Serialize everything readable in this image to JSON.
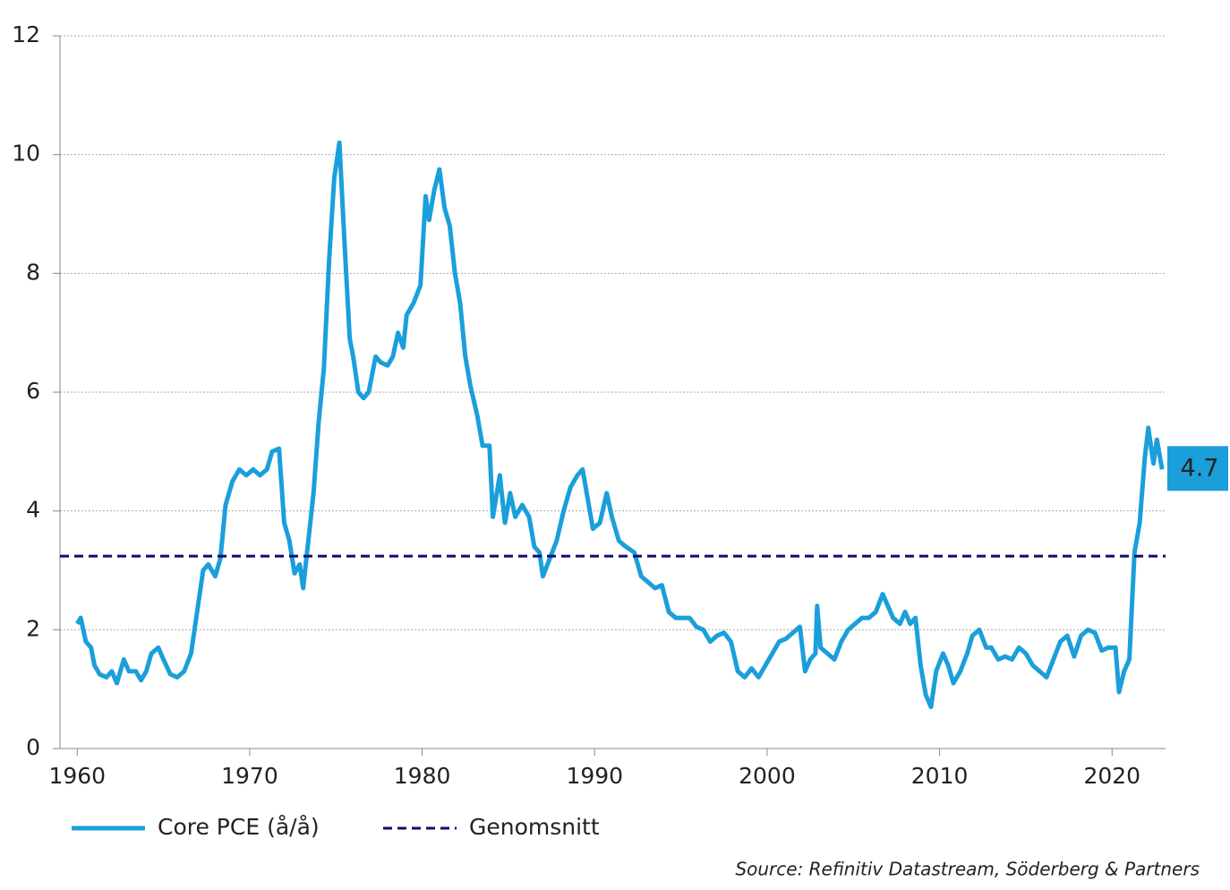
{
  "chart_data": {
    "type": "line",
    "xlim": [
      1959,
      2023.1
    ],
    "xticks": [
      1960,
      1970,
      1980,
      1990,
      2000,
      2010,
      2020
    ],
    "ylim": [
      0,
      12
    ],
    "yticks": [
      0,
      2,
      4,
      6,
      8,
      10,
      12
    ],
    "grid": true,
    "legend": "bottom",
    "source": "Source: Refinitiv Datastream, Söderberg & Partners",
    "series": [
      {
        "name": "Core PCE (å/å)",
        "color": "#1a9fdb",
        "style": "solid",
        "end_label": "4.7",
        "x": [
          1960.0,
          1960.2,
          1960.5,
          1960.8,
          1961.0,
          1961.3,
          1961.7,
          1962.0,
          1962.3,
          1962.7,
          1963.0,
          1963.4,
          1963.7,
          1964.0,
          1964.3,
          1964.7,
          1965.0,
          1965.4,
          1965.8,
          1966.2,
          1966.6,
          1967.0,
          1967.3,
          1967.6,
          1968.0,
          1968.3,
          1968.6,
          1969.0,
          1969.4,
          1969.8,
          1970.2,
          1970.6,
          1971.0,
          1971.3,
          1971.7,
          1972.0,
          1972.3,
          1972.6,
          1972.9,
          1973.1,
          1973.4,
          1973.7,
          1974.0,
          1974.3,
          1974.6,
          1974.9,
          1975.2,
          1975.5,
          1975.8,
          1976.0,
          1976.3,
          1976.6,
          1976.9,
          1977.3,
          1977.6,
          1978.0,
          1978.3,
          1978.6,
          1978.9,
          1979.1,
          1979.5,
          1979.9,
          1980.2,
          1980.4,
          1980.7,
          1981.0,
          1981.3,
          1981.6,
          1981.9,
          1982.2,
          1982.5,
          1982.8,
          1983.2,
          1983.5,
          1983.9,
          1984.1,
          1984.5,
          1984.8,
          1985.1,
          1985.4,
          1985.8,
          1986.2,
          1986.5,
          1986.8,
          1987.0,
          1987.4,
          1987.8,
          1988.2,
          1988.6,
          1989.0,
          1989.3,
          1989.6,
          1989.9,
          1990.3,
          1990.7,
          1991.0,
          1991.4,
          1991.8,
          1992.3,
          1992.7,
          1993.1,
          1993.5,
          1993.9,
          1994.3,
          1994.7,
          1995.1,
          1995.5,
          1995.9,
          1996.3,
          1996.7,
          1997.1,
          1997.5,
          1997.9,
          1998.3,
          1998.7,
          1999.1,
          1999.5,
          1999.9,
          2000.3,
          2000.7,
          2001.1,
          2001.5,
          2001.9,
          2002.2,
          2002.5,
          2002.8,
          2002.9,
          2003.1,
          2003.5,
          2003.9,
          2004.3,
          2004.7,
          2005.1,
          2005.5,
          2005.9,
          2006.3,
          2006.7,
          2007.0,
          2007.3,
          2007.7,
          2008.0,
          2008.3,
          2008.6,
          2008.9,
          2009.2,
          2009.5,
          2009.8,
          2010.2,
          2010.5,
          2010.8,
          2011.2,
          2011.6,
          2011.9,
          2012.3,
          2012.7,
          2013.0,
          2013.4,
          2013.8,
          2014.2,
          2014.6,
          2015.0,
          2015.4,
          2015.8,
          2016.2,
          2016.6,
          2017.0,
          2017.4,
          2017.8,
          2018.2,
          2018.6,
          2019.0,
          2019.4,
          2019.8,
          2020.2,
          2020.4,
          2020.7,
          2021.0,
          2021.3,
          2021.6,
          2021.9,
          2022.1,
          2022.4,
          2022.6,
          2022.9
        ],
        "values": [
          2.1,
          2.2,
          1.8,
          1.7,
          1.4,
          1.25,
          1.2,
          1.3,
          1.1,
          1.5,
          1.3,
          1.3,
          1.15,
          1.3,
          1.6,
          1.7,
          1.5,
          1.25,
          1.2,
          1.3,
          1.6,
          2.4,
          3.0,
          3.1,
          2.9,
          3.2,
          4.1,
          4.5,
          4.7,
          4.6,
          4.7,
          4.6,
          4.7,
          5.0,
          5.05,
          3.8,
          3.5,
          2.95,
          3.1,
          2.7,
          3.5,
          4.3,
          5.5,
          6.4,
          8.2,
          9.6,
          10.2,
          8.5,
          6.9,
          6.6,
          6.0,
          5.9,
          6.0,
          6.6,
          6.5,
          6.45,
          6.6,
          7.0,
          6.75,
          7.3,
          7.5,
          7.8,
          9.3,
          8.9,
          9.4,
          9.75,
          9.1,
          8.8,
          8.0,
          7.5,
          6.6,
          6.1,
          5.6,
          5.1,
          5.1,
          3.9,
          4.6,
          3.8,
          4.3,
          3.9,
          4.1,
          3.9,
          3.4,
          3.3,
          2.9,
          3.2,
          3.5,
          4.0,
          4.4,
          4.6,
          4.7,
          4.2,
          3.7,
          3.8,
          4.3,
          3.9,
          3.5,
          3.4,
          3.3,
          2.9,
          2.8,
          2.7,
          2.75,
          2.3,
          2.2,
          2.2,
          2.2,
          2.05,
          2.0,
          1.8,
          1.9,
          1.95,
          1.8,
          1.3,
          1.2,
          1.35,
          1.2,
          1.4,
          1.6,
          1.8,
          1.85,
          1.95,
          2.05,
          1.3,
          1.5,
          1.6,
          2.4,
          1.7,
          1.6,
          1.5,
          1.8,
          2.0,
          2.1,
          2.2,
          2.2,
          2.3,
          2.6,
          2.4,
          2.2,
          2.1,
          2.3,
          2.1,
          2.2,
          1.4,
          0.9,
          0.7,
          1.3,
          1.6,
          1.4,
          1.1,
          1.3,
          1.6,
          1.9,
          2.0,
          1.7,
          1.7,
          1.5,
          1.55,
          1.5,
          1.7,
          1.6,
          1.4,
          1.3,
          1.2,
          1.5,
          1.8,
          1.9,
          1.55,
          1.9,
          2.0,
          1.95,
          1.65,
          1.7,
          1.7,
          0.95,
          1.3,
          1.5,
          3.3,
          3.8,
          4.9,
          5.4,
          4.8,
          5.2,
          4.7
        ]
      },
      {
        "name": "Genomsnitt",
        "color": "#0d0d72",
        "style": "dashed",
        "x": [
          1959,
          2023.1
        ],
        "values": [
          3.24,
          3.24
        ]
      }
    ]
  }
}
